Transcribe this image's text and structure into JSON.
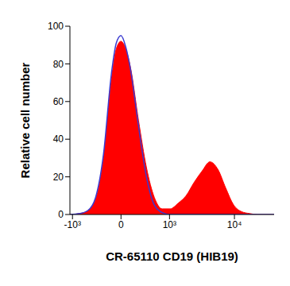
{
  "chart_data": {
    "type": "area",
    "xlabel": "CR-65110 CD19 (HIB19)",
    "ylabel": "Relative cell number",
    "log": "x",
    "xlim": [
      -1100,
      40000
    ],
    "xticks": [
      {
        "value": -1000,
        "label": "-10³"
      },
      0,
      {
        "value": 1000,
        "label": "10³"
      },
      {
        "value": 10000,
        "label": "10⁴"
      }
    ],
    "ylim": [
      0,
      100
    ],
    "yticks": [
      0,
      20,
      40,
      60,
      80,
      100
    ],
    "grid": false,
    "x": [
      -1100,
      -757,
      -551,
      -384,
      -247,
      -129,
      -63,
      0,
      63,
      129,
      247,
      384,
      551,
      757,
      1026,
      1375,
      1828,
      2424,
      3207,
      4240,
      5597,
      7387,
      9758,
      12880,
      16990,
      22420,
      40000
    ],
    "series": [
      {
        "color": "#ff0000",
        "type": "area",
        "values": [
          0,
          0.5,
          2,
          8,
          30,
          72,
          88,
          92,
          88,
          78,
          50,
          25,
          9,
          3,
          3,
          6,
          10,
          17,
          23,
          28,
          24,
          14,
          5,
          1.5,
          0.5,
          0,
          0
        ]
      },
      {
        "color": "#3a3ad0",
        "type": "line",
        "values": [
          0,
          0.5,
          2,
          9,
          32,
          75,
          91,
          95,
          89,
          77,
          47,
          20,
          5,
          1,
          0,
          0,
          0,
          0,
          0,
          0,
          0,
          0,
          0,
          0,
          0,
          0,
          0
        ]
      }
    ]
  }
}
